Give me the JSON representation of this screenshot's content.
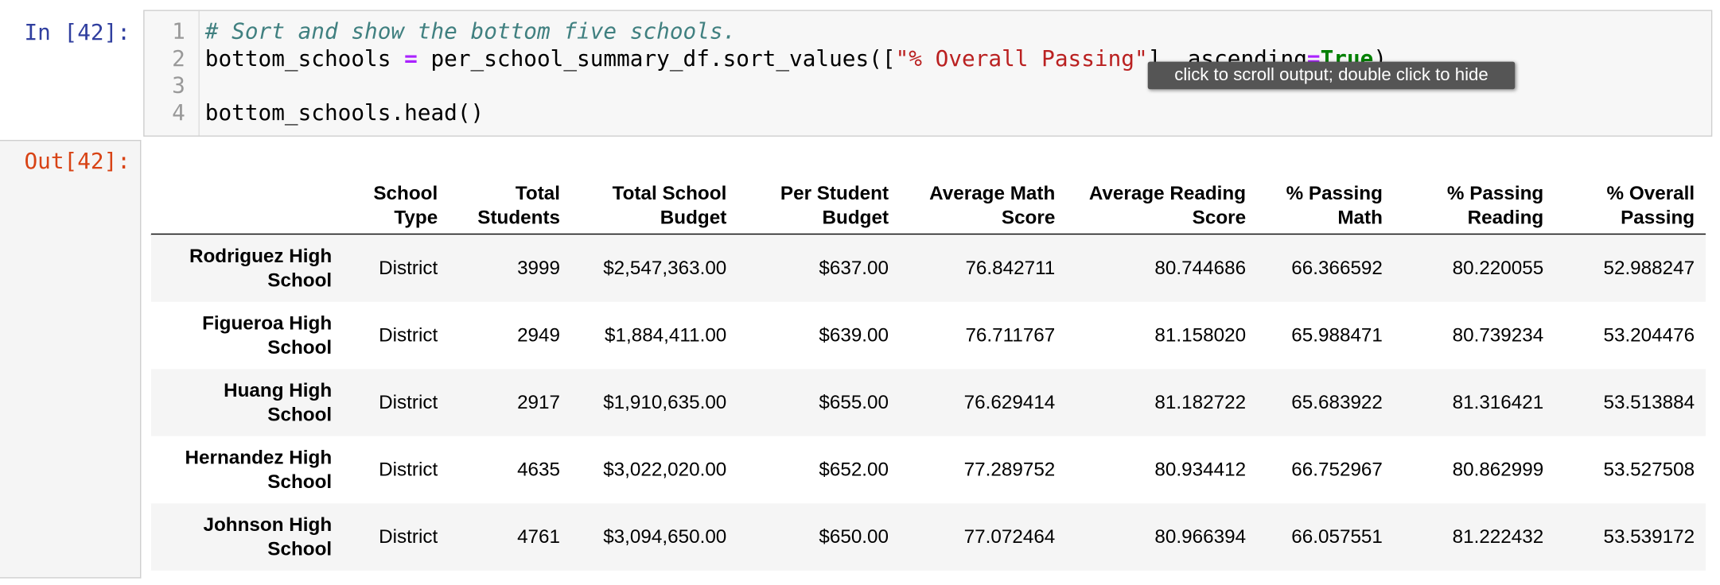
{
  "input_prompt": "In [42]:",
  "output_prompt": "Out[42]:",
  "code": {
    "line_numbers": [
      1,
      2,
      3,
      4
    ],
    "lines": [
      [
        {
          "text": "# Sort and show the bottom five schools.",
          "color": "#408080",
          "italic": true
        }
      ],
      [
        {
          "text": "bottom_schools ",
          "color": "#000000"
        },
        {
          "text": "=",
          "color": "#AA22FF",
          "bold": true
        },
        {
          "text": " per_school_summary_df.sort_values([",
          "color": "#000000"
        },
        {
          "text": "\"% Overall Passing\"",
          "color": "#BA2121"
        },
        {
          "text": "], ascending",
          "color": "#000000"
        },
        {
          "text": "=",
          "color": "#AA22FF",
          "bold": true
        },
        {
          "text": "True",
          "color": "#008000",
          "bold": true
        },
        {
          "text": ")",
          "color": "#000000"
        }
      ],
      [],
      [
        {
          "text": "bottom_schools.head()",
          "color": "#000000"
        }
      ]
    ]
  },
  "tooltip": "click to scroll output; double click to hide",
  "table": {
    "columns": [
      "School Type",
      "Total Students",
      "Total School Budget",
      "Per Student Budget",
      "Average Math Score",
      "Average Reading Score",
      "% Passing Math",
      "% Passing Reading",
      "% Overall Passing"
    ],
    "rows": [
      {
        "index": "Rodriguez High School",
        "cells": [
          "District",
          "3999",
          "$2,547,363.00",
          "$637.00",
          "76.842711",
          "80.744686",
          "66.366592",
          "80.220055",
          "52.988247"
        ]
      },
      {
        "index": "Figueroa High School",
        "cells": [
          "District",
          "2949",
          "$1,884,411.00",
          "$639.00",
          "76.711767",
          "81.158020",
          "65.988471",
          "80.739234",
          "53.204476"
        ]
      },
      {
        "index": "Huang High School",
        "cells": [
          "District",
          "2917",
          "$1,910,635.00",
          "$655.00",
          "76.629414",
          "81.182722",
          "65.683922",
          "81.316421",
          "53.513884"
        ]
      },
      {
        "index": "Hernandez High School",
        "cells": [
          "District",
          "4635",
          "$3,022,020.00",
          "$652.00",
          "77.289752",
          "80.934412",
          "66.752967",
          "80.862999",
          "53.527508"
        ]
      },
      {
        "index": "Johnson High School",
        "cells": [
          "District",
          "4761",
          "$3,094,650.00",
          "$650.00",
          "77.072464",
          "80.966394",
          "66.057551",
          "81.222432",
          "53.539172"
        ]
      }
    ]
  }
}
